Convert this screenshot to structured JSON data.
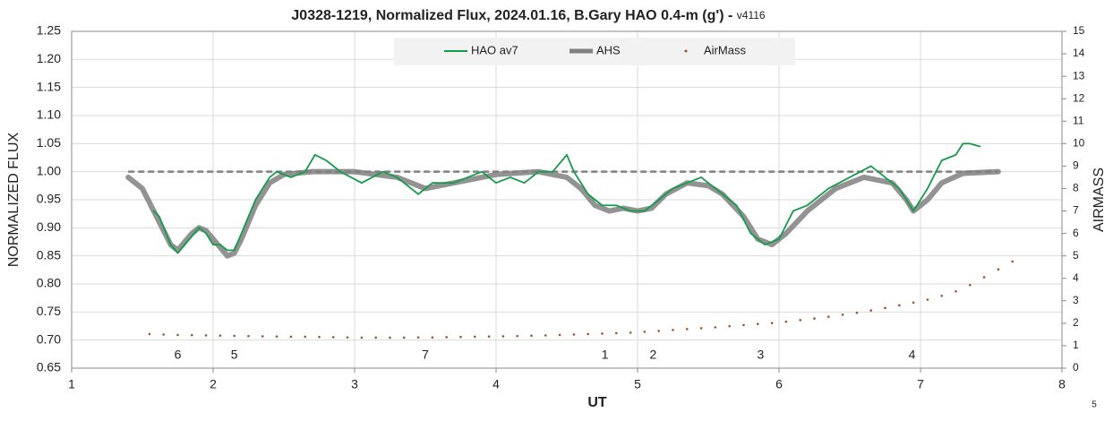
{
  "chart_data": {
    "type": "line",
    "title": "J0328-1219, Normalized Flux, 2024.01.16, B.Gary HAO 0.4-m (g') - ",
    "title_suffix": "v4116",
    "x_label": "UT",
    "y_label": "NORMALIZED FLUX",
    "y2_label": "AIRMASS",
    "corner_label": "5",
    "xlim": [
      1,
      8
    ],
    "xticks": [
      1,
      2,
      3,
      4,
      5,
      6,
      7,
      8
    ],
    "ylim": [
      0.65,
      1.25
    ],
    "yticks": [
      {
        "value": 0.65,
        "label": "0.65"
      },
      {
        "value": 0.7,
        "label": "0.70"
      },
      {
        "value": 0.75,
        "label": "0.75"
      },
      {
        "value": 0.8,
        "label": "0.80"
      },
      {
        "value": 0.85,
        "label": "0.85"
      },
      {
        "value": 0.9,
        "label": "0.90"
      },
      {
        "value": 0.95,
        "label": "0.95"
      },
      {
        "value": 1.0,
        "label": "1.00"
      },
      {
        "value": 1.05,
        "label": "1.05"
      },
      {
        "value": 1.1,
        "label": "1.10"
      },
      {
        "value": 1.15,
        "label": "1.15"
      },
      {
        "value": 1.2,
        "label": "1.20"
      },
      {
        "value": 1.25,
        "label": "1.25"
      }
    ],
    "y2lim": [
      0,
      15
    ],
    "y2ticks": [
      0,
      1,
      2,
      3,
      4,
      5,
      6,
      7,
      8,
      9,
      10,
      11,
      12,
      13,
      14,
      15
    ],
    "grid": true,
    "legend": "top",
    "reference_line": {
      "value": 1.0,
      "x": [
        1.4,
        7.55
      ],
      "color": "#808080"
    },
    "series": [
      {
        "name": "HAO av7",
        "type": "line",
        "color": "#169b4c",
        "x": [
          1.58,
          1.62,
          1.7,
          1.75,
          1.8,
          1.9,
          1.95,
          2.0,
          2.05,
          2.1,
          2.15,
          2.2,
          2.3,
          2.4,
          2.45,
          2.55,
          2.65,
          2.72,
          2.8,
          2.9,
          3.05,
          3.2,
          3.3,
          3.45,
          3.55,
          3.7,
          3.8,
          3.9,
          4.0,
          4.1,
          4.2,
          4.3,
          4.4,
          4.5,
          4.55,
          4.65,
          4.75,
          4.85,
          4.95,
          5.05,
          5.15,
          5.25,
          5.35,
          5.45,
          5.55,
          5.7,
          5.8,
          5.9,
          6.0,
          6.1,
          6.2,
          6.35,
          6.5,
          6.65,
          6.75,
          6.85,
          6.95,
          7.05,
          7.15,
          7.25,
          7.3,
          7.35,
          7.42
        ],
        "values": [
          0.93,
          0.92,
          0.87,
          0.855,
          0.87,
          0.9,
          0.89,
          0.87,
          0.87,
          0.86,
          0.86,
          0.89,
          0.95,
          0.99,
          1.0,
          0.99,
          1.0,
          1.03,
          1.02,
          1.0,
          0.98,
          1.0,
          0.99,
          0.96,
          0.98,
          0.98,
          0.99,
          1.0,
          0.98,
          0.99,
          0.98,
          1.0,
          1.0,
          1.03,
          1.0,
          0.96,
          0.94,
          0.94,
          0.93,
          0.93,
          0.95,
          0.97,
          0.98,
          0.99,
          0.97,
          0.94,
          0.89,
          0.87,
          0.88,
          0.93,
          0.94,
          0.97,
          0.99,
          1.01,
          0.99,
          0.97,
          0.93,
          0.97,
          1.02,
          1.03,
          1.05,
          1.05,
          1.045
        ]
      },
      {
        "name": "AHS",
        "type": "line",
        "color": "#808080",
        "x": [
          1.4,
          1.5,
          1.6,
          1.7,
          1.75,
          1.85,
          1.9,
          1.95,
          2.0,
          2.1,
          2.15,
          2.2,
          2.3,
          2.4,
          2.5,
          2.7,
          3.0,
          3.3,
          3.5,
          3.7,
          4.0,
          4.3,
          4.5,
          4.6,
          4.7,
          4.8,
          4.9,
          5.0,
          5.1,
          5.2,
          5.35,
          5.5,
          5.6,
          5.75,
          5.85,
          5.95,
          6.05,
          6.2,
          6.4,
          6.6,
          6.8,
          6.9,
          6.95,
          7.05,
          7.15,
          7.3,
          7.55
        ],
        "values": [
          0.99,
          0.97,
          0.92,
          0.87,
          0.86,
          0.89,
          0.9,
          0.895,
          0.88,
          0.85,
          0.855,
          0.88,
          0.94,
          0.98,
          0.995,
          1.0,
          1.0,
          0.99,
          0.97,
          0.98,
          0.995,
          1.0,
          0.99,
          0.97,
          0.94,
          0.93,
          0.935,
          0.93,
          0.935,
          0.96,
          0.98,
          0.975,
          0.96,
          0.92,
          0.88,
          0.87,
          0.89,
          0.93,
          0.97,
          0.99,
          0.98,
          0.95,
          0.93,
          0.95,
          0.98,
          0.997,
          1.0
        ]
      },
      {
        "name": "AirMass",
        "type": "scatter",
        "axis": "y2",
        "color": "#a0522d",
        "x": [
          1.55,
          1.65,
          1.75,
          1.85,
          1.95,
          2.05,
          2.15,
          2.25,
          2.35,
          2.45,
          2.55,
          2.65,
          2.75,
          2.85,
          2.95,
          3.05,
          3.15,
          3.25,
          3.35,
          3.45,
          3.55,
          3.65,
          3.75,
          3.85,
          3.95,
          4.05,
          4.15,
          4.25,
          4.35,
          4.45,
          4.55,
          4.65,
          4.75,
          4.85,
          4.95,
          5.05,
          5.15,
          5.25,
          5.35,
          5.45,
          5.55,
          5.65,
          5.75,
          5.85,
          5.95,
          6.05,
          6.15,
          6.25,
          6.35,
          6.45,
          6.55,
          6.65,
          6.75,
          6.85,
          6.95,
          7.05,
          7.15,
          7.25,
          7.35,
          7.45,
          7.55,
          7.65
        ],
        "values": [
          1.52,
          1.5,
          1.48,
          1.47,
          1.46,
          1.45,
          1.44,
          1.43,
          1.42,
          1.41,
          1.4,
          1.4,
          1.39,
          1.38,
          1.37,
          1.36,
          1.36,
          1.36,
          1.36,
          1.37,
          1.37,
          1.38,
          1.39,
          1.4,
          1.41,
          1.42,
          1.43,
          1.45,
          1.46,
          1.48,
          1.5,
          1.52,
          1.54,
          1.56,
          1.58,
          1.62,
          1.66,
          1.7,
          1.74,
          1.78,
          1.82,
          1.87,
          1.92,
          1.97,
          2.01,
          2.07,
          2.14,
          2.21,
          2.29,
          2.38,
          2.47,
          2.57,
          2.68,
          2.8,
          2.92,
          3.05,
          3.22,
          3.42,
          3.7,
          4.05,
          4.4,
          4.75
        ]
      }
    ],
    "annotations": [
      {
        "x": 1.75,
        "y": 0.673,
        "text": "6"
      },
      {
        "x": 2.15,
        "y": 0.673,
        "text": "5"
      },
      {
        "x": 3.5,
        "y": 0.673,
        "text": "7"
      },
      {
        "x": 4.77,
        "y": 0.673,
        "text": "1"
      },
      {
        "x": 5.11,
        "y": 0.673,
        "text": "2"
      },
      {
        "x": 5.87,
        "y": 0.673,
        "text": "3"
      },
      {
        "x": 6.94,
        "y": 0.673,
        "text": "4"
      }
    ]
  }
}
